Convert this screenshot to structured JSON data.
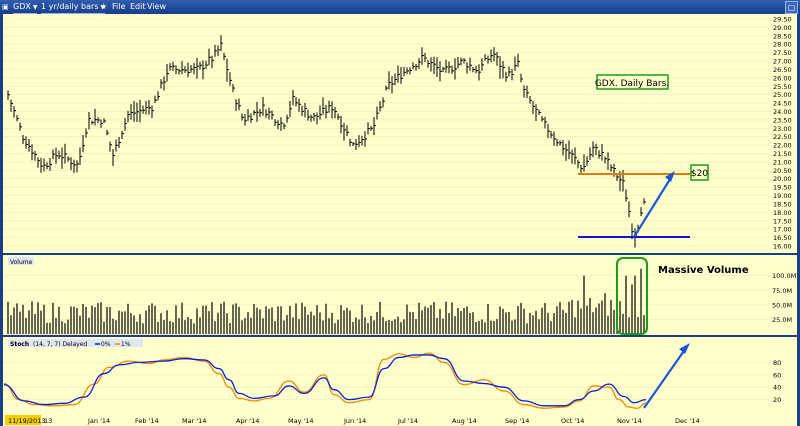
{
  "toolbar": {
    "symbol": "GDX",
    "period": "1 yr/daily bars",
    "menu": [
      "File",
      "Edit",
      "View"
    ]
  },
  "colors": {
    "background": "#ffffcc",
    "frame": "#1b3f86",
    "bars": "#000000",
    "stoch_k": "#0a1fd6",
    "stoch_d": "#f08c00",
    "hline20": "#e8780c",
    "hline165": "#1212d0",
    "arrow": "#1a56d6",
    "box": "#1a9e1a"
  },
  "icons": [
    "camera-icon",
    "star-icon",
    "window-icon",
    "chevron-down-icon"
  ],
  "chart_data": [
    {
      "type": "candlestick",
      "title": "GDX. Daily Bars.",
      "ylim": [
        16,
        29
      ],
      "yticks": [
        "29.50",
        "29.00",
        "28.50",
        "28.00",
        "27.50",
        "27.00",
        "26.50",
        "26.00",
        "25.50",
        "25.00",
        "24.50",
        "24.00",
        "23.50",
        "23.00",
        "22.50",
        "22.00",
        "21.50",
        "21.00",
        "20.50",
        "20.00",
        "19.50",
        "19.00",
        "18.50",
        "18.00",
        "17.50",
        "17.00",
        "16.50",
        "16.00"
      ],
      "xticks": [
        "11/19/2013",
        "13",
        "Jan '14",
        "Feb '14",
        "Mar '14",
        "Apr '14",
        "May '14",
        "Jun '14",
        "Jul '14",
        "Aug '14",
        "Sep '14",
        "Oct '14",
        "Nov '14",
        "Dec '14"
      ],
      "close_path": [
        [
          0,
          24.6
        ],
        [
          5,
          25
        ],
        [
          20,
          22.5
        ],
        [
          40,
          20.7
        ],
        [
          55,
          21.5
        ],
        [
          75,
          20.8
        ],
        [
          85,
          23.5
        ],
        [
          100,
          23.5
        ],
        [
          110,
          21.4
        ],
        [
          125,
          23.8
        ],
        [
          150,
          24.3
        ],
        [
          165,
          26.5
        ],
        [
          195,
          26.5
        ],
        [
          210,
          27.2
        ],
        [
          218,
          27.9
        ],
        [
          230,
          25.2
        ],
        [
          240,
          23.5
        ],
        [
          260,
          24.2
        ],
        [
          280,
          23.2
        ],
        [
          290,
          24.7
        ],
        [
          310,
          23.6
        ],
        [
          330,
          24.3
        ],
        [
          350,
          22
        ],
        [
          370,
          23
        ],
        [
          385,
          25.5
        ],
        [
          400,
          26.3
        ],
        [
          420,
          27.2
        ],
        [
          440,
          26.3
        ],
        [
          460,
          27
        ],
        [
          475,
          26.4
        ],
        [
          490,
          27.5
        ],
        [
          498,
          26.7
        ],
        [
          505,
          26.1
        ],
        [
          515,
          26.8
        ],
        [
          520,
          25.3
        ],
        [
          540,
          23.3
        ],
        [
          555,
          22.2
        ],
        [
          570,
          21.3
        ],
        [
          580,
          20.6
        ],
        [
          590,
          21.8
        ],
        [
          600,
          21.4
        ],
        [
          610,
          20.5
        ],
        [
          620,
          19.7
        ],
        [
          625,
          18.5
        ],
        [
          628,
          17.2
        ],
        [
          633,
          16.7
        ],
        [
          638,
          18.2
        ],
        [
          642,
          18.5
        ]
      ],
      "annotations": [
        {
          "text": "GDX. Daily Bars."
        },
        {
          "text": "$20"
        }
      ],
      "hlines": [
        {
          "value": 20,
          "color": "orange"
        },
        {
          "value": 16.5,
          "color": "blue"
        }
      ]
    },
    {
      "type": "bar",
      "title": "Volume",
      "yticks": [
        "100.0M",
        "75.0M",
        "50.0M",
        "25.0M"
      ],
      "ylim": [
        0,
        120
      ],
      "spikes": [
        [
          580,
          100
        ],
        [
          602,
          70
        ],
        [
          622,
          100
        ],
        [
          628,
          85
        ],
        [
          633,
          100
        ],
        [
          638,
          112
        ]
      ],
      "annotations": [
        {
          "text": "Massive Volume"
        }
      ]
    },
    {
      "type": "line",
      "title": "Stoch",
      "params": "(14, 7, 7) Delayed",
      "legend": [
        "0%",
        "1%"
      ],
      "ylim": [
        0,
        100
      ],
      "yticks": [
        "80",
        "60",
        "40",
        "20"
      ],
      "series": [
        {
          "name": "0%",
          "values": [
            [
              0,
              44
            ],
            [
              20,
              18
            ],
            [
              40,
              12
            ],
            [
              60,
              14
            ],
            [
              80,
              24
            ],
            [
              100,
              62
            ],
            [
              115,
              76
            ],
            [
              135,
              80
            ],
            [
              160,
              82
            ],
            [
              180,
              86
            ],
            [
              200,
              84
            ],
            [
              215,
              70
            ],
            [
              225,
              52
            ],
            [
              235,
              30
            ],
            [
              250,
              22
            ],
            [
              270,
              26
            ],
            [
              285,
              42
            ],
            [
              300,
              30
            ],
            [
              320,
              55
            ],
            [
              330,
              36
            ],
            [
              345,
              20
            ],
            [
              365,
              24
            ],
            [
              380,
              70
            ],
            [
              395,
              88
            ],
            [
              410,
              92
            ],
            [
              425,
              92
            ],
            [
              440,
              86
            ],
            [
              460,
              50
            ],
            [
              480,
              46
            ],
            [
              500,
              40
            ],
            [
              520,
              18
            ],
            [
              540,
              10
            ],
            [
              560,
              10
            ],
            [
              575,
              20
            ],
            [
              590,
              34
            ],
            [
              605,
              45
            ],
            [
              620,
              25
            ],
            [
              630,
              15
            ],
            [
              642,
              20
            ]
          ]
        },
        {
          "name": "1%",
          "values": [
            [
              0,
              46
            ],
            [
              15,
              20
            ],
            [
              30,
              12
            ],
            [
              50,
              10
            ],
            [
              70,
              12
            ],
            [
              90,
              45
            ],
            [
              105,
              72
            ],
            [
              125,
              82
            ],
            [
              145,
              78
            ],
            [
              160,
              84
            ],
            [
              180,
              88
            ],
            [
              200,
              82
            ],
            [
              215,
              62
            ],
            [
              225,
              40
            ],
            [
              235,
              22
            ],
            [
              250,
              18
            ],
            [
              265,
              22
            ],
            [
              285,
              50
            ],
            [
              300,
              32
            ],
            [
              320,
              60
            ],
            [
              330,
              28
            ],
            [
              345,
              15
            ],
            [
              365,
              20
            ],
            [
              380,
              85
            ],
            [
              395,
              94
            ],
            [
              410,
              88
            ],
            [
              425,
              95
            ],
            [
              440,
              80
            ],
            [
              460,
              44
            ],
            [
              480,
              52
            ],
            [
              500,
              34
            ],
            [
              520,
              12
            ],
            [
              540,
              6
            ],
            [
              560,
              8
            ],
            [
              575,
              18
            ],
            [
              590,
              42
            ],
            [
              605,
              40
            ],
            [
              615,
              20
            ],
            [
              625,
              8
            ],
            [
              633,
              6
            ],
            [
              642,
              14
            ]
          ]
        }
      ]
    }
  ]
}
